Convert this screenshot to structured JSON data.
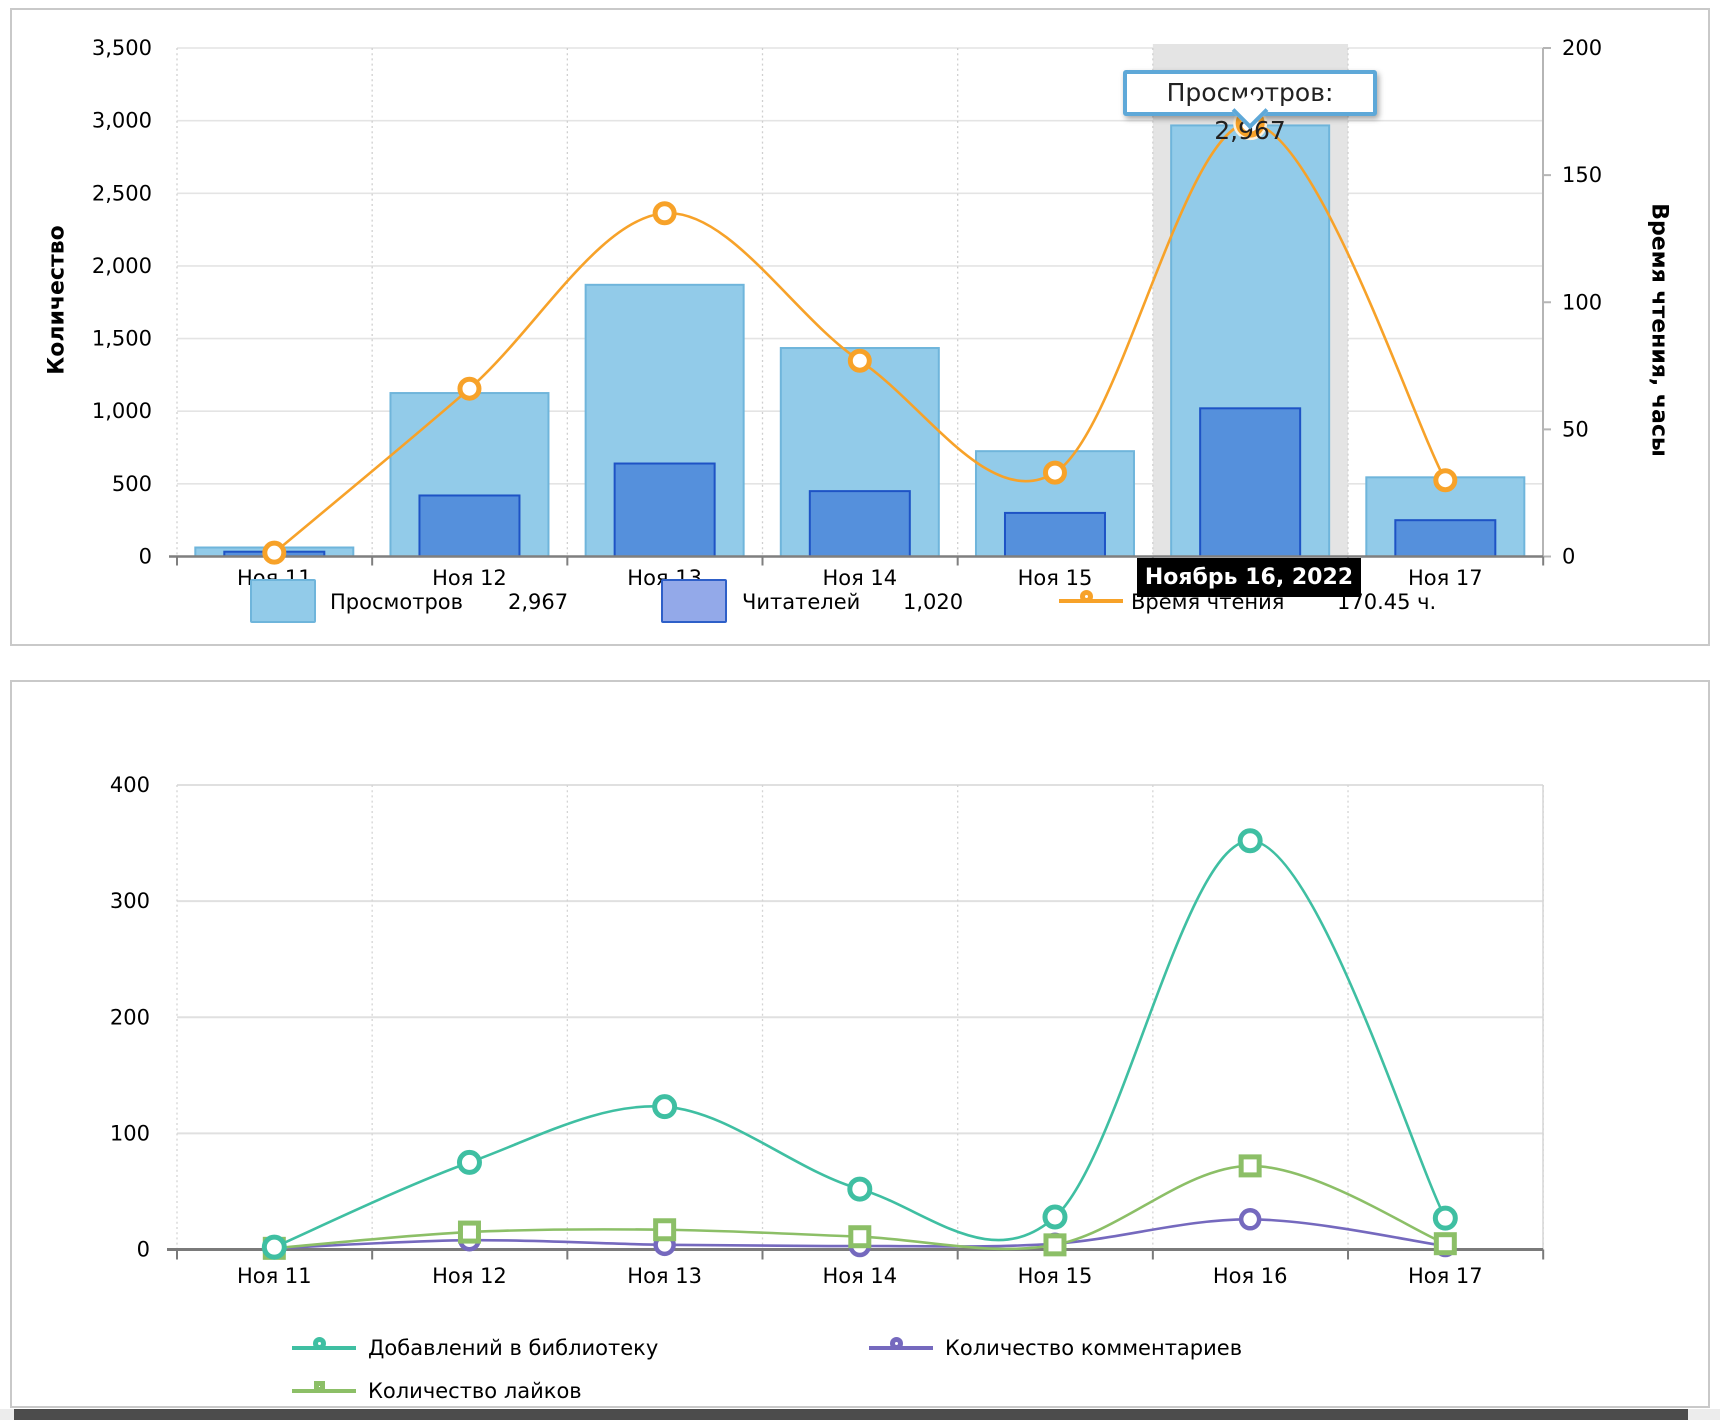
{
  "chart_data": [
    {
      "type": "combo-bar-line",
      "categories": [
        "Ноя 11",
        "Ноя 12",
        "Ноя 13",
        "Ноя 14",
        "Ноя 15",
        "Ноя 16",
        "Ноя 17"
      ],
      "x_tick_labels": [
        "Ноя 11",
        "Ноя 12",
        "Ноя 13",
        "Ноя 14",
        "Ноя 15",
        "Ноябрь 16, 2022",
        "Ноя 17"
      ],
      "series": [
        {
          "name": "Просмотров",
          "type": "bar",
          "axis": "left",
          "values": [
            62,
            1125,
            1870,
            1435,
            725,
            2967,
            545
          ]
        },
        {
          "name": "Читателей",
          "type": "bar",
          "axis": "left",
          "values": [
            33,
            420,
            640,
            450,
            300,
            1020,
            250
          ]
        },
        {
          "name": "Время чтения",
          "type": "line",
          "axis": "right",
          "values": [
            1.5,
            66,
            135,
            77,
            33,
            170.45,
            30
          ]
        }
      ],
      "y_left": {
        "label": "Количество",
        "min": 0,
        "max": 3500,
        "tick_step": 500,
        "tick_labels": [
          "0",
          "500",
          "1,000",
          "1,500",
          "2,000",
          "2,500",
          "3,000",
          "3,500"
        ]
      },
      "y_right": {
        "label": "Время чтения, часы",
        "min": 0,
        "max": 200,
        "tick_step": 50,
        "tick_labels": [
          "0",
          "50",
          "100",
          "150",
          "200"
        ]
      },
      "highlight": {
        "index": 5,
        "date_label": "Ноябрь 16, 2022",
        "tooltip": "Просмотров: 2,967"
      },
      "legend": {
        "position": "bottom",
        "items": [
          {
            "label": "Просмотров",
            "value": "2,967"
          },
          {
            "label": "Читателей",
            "value": "1,020"
          },
          {
            "label": "Время чтения",
            "value": "170.45 ч."
          }
        ]
      },
      "grid": true,
      "colors": {
        "views_fill": "#92CBE9",
        "views_border": "#6FB5DB",
        "readers_fill": "#5590DC",
        "readers_border": "#1E53C5",
        "readers_legend_fill": "#93A9E9",
        "readers_legend_border": "#2E5FC8",
        "line": "#F7A229",
        "marker_halo": "#FCF1DC",
        "highlight_band": "#E4E4E4",
        "tooltip_border": "#5EA8D8",
        "date_label_bg": "#000000",
        "date_label_text": "#FFFFFF"
      }
    },
    {
      "type": "line",
      "categories": [
        "Ноя 11",
        "Ноя 12",
        "Ноя 13",
        "Ноя 14",
        "Ноя 15",
        "Ноя 16",
        "Ноя 17"
      ],
      "series": [
        {
          "name": "Добавлений в библиотеку",
          "marker": "circle",
          "values": [
            2,
            75,
            123,
            52,
            28,
            352,
            27
          ]
        },
        {
          "name": "Количество комментариев",
          "marker": "circle",
          "values": [
            1,
            8,
            4,
            3,
            5,
            26,
            3
          ]
        },
        {
          "name": "Количество лайков",
          "marker": "square",
          "values": [
            1,
            15,
            17,
            11,
            4,
            72,
            5
          ]
        }
      ],
      "y": {
        "min": 0,
        "max": 400,
        "tick_step": 100,
        "tick_labels": [
          "0",
          "100",
          "200",
          "300",
          "400"
        ]
      },
      "legend": {
        "position": "bottom",
        "items": [
          {
            "label": "Добавлений в библиотеку"
          },
          {
            "label": "Количество комментариев"
          },
          {
            "label": "Количество лайков"
          }
        ]
      },
      "grid": true,
      "colors": {
        "library": "#3FBFA2",
        "comments": "#7569BE",
        "likes": "#8CBF67"
      }
    }
  ]
}
